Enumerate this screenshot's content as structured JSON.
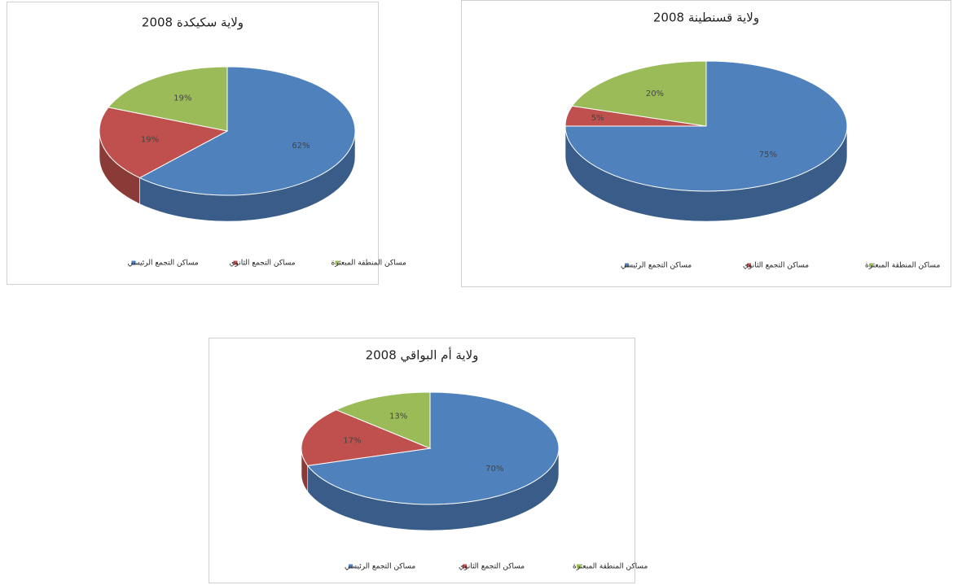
{
  "chart_data": [
    {
      "type": "pie",
      "title": "ولاية سكيكدة 2008",
      "categories": [
        "مساكن التجمع الرئيسي",
        "مساكن التجمع الثانوي",
        "مساكن المنطقة المبعثرة"
      ],
      "values": [
        62,
        19,
        19
      ],
      "value_labels": [
        "62%",
        "19%",
        "19%"
      ],
      "colors": [
        "#4f81bd",
        "#c0504d",
        "#9bbb59"
      ]
    },
    {
      "type": "pie",
      "title": "ولاية قسنطينة 2008",
      "categories": [
        "مساكن التجمع الرئيسي",
        "مساكن التجمع الثانوي",
        "مساكن المنطقة المبعثرة"
      ],
      "values": [
        75,
        5,
        20
      ],
      "value_labels": [
        "75%",
        "5%",
        "20%"
      ],
      "colors": [
        "#4f81bd",
        "#c0504d",
        "#9bbb59"
      ]
    },
    {
      "type": "pie",
      "title": "ولاية أم البواقي 2008",
      "categories": [
        "مساكن التجمع الرئيسي",
        "مساكن التجمع الثانوي",
        "مساكن المنطقة المبعثرة"
      ],
      "values": [
        70,
        17,
        13
      ],
      "value_labels": [
        "70%",
        "17%",
        "13%"
      ],
      "colors": [
        "#4f81bd",
        "#c0504d",
        "#9bbb59"
      ]
    }
  ]
}
